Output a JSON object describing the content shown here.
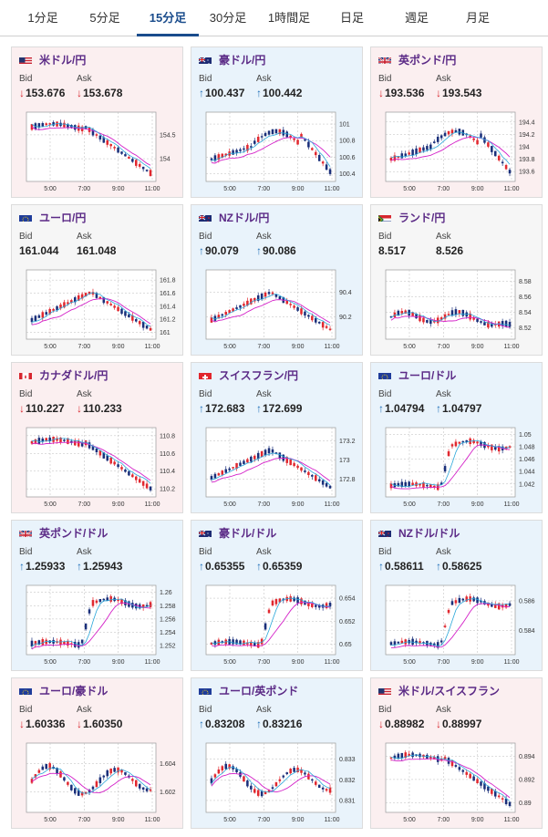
{
  "tabs": [
    "1分足",
    "5分足",
    "15分足",
    "30分足",
    "1時間足",
    "日足",
    "週足",
    "月足"
  ],
  "active_tab": 2,
  "labels": {
    "bid": "Bid",
    "ask": "Ask"
  },
  "colors": {
    "down_arrow": "#d9262e",
    "up_arrow": "#1f6fb8",
    "pair_name": "#5b2a86",
    "ma_line": "#d421c8",
    "trend_line": "#2aa6d9",
    "bull_candle": "#e1282f",
    "bear_candle": "#1a2f7a",
    "active_tab": "#1a4c8c"
  },
  "cards": [
    {
      "pair": "米ドル/円",
      "flag": "us-flag-icon",
      "dir": "down",
      "bid": "153.676",
      "ask": "153.678",
      "chart_data": {
        "type": "candlestick",
        "x_ticks": [
          "5:00",
          "7:00",
          "9:00",
          "11:00"
        ],
        "y_ticks": [
          "154.5",
          "154"
        ],
        "ylim": [
          153.6,
          154.9
        ],
        "shape": "downtrend"
      }
    },
    {
      "pair": "豪ドル/円",
      "flag": "au-flag-icon",
      "dir": "up",
      "bid": "100.437",
      "ask": "100.442",
      "chart_data": {
        "type": "candlestick",
        "x_ticks": [
          "5:00",
          "7:00",
          "9:00",
          "11:00"
        ],
        "y_ticks": [
          "101",
          "100.8",
          "100.6",
          "100.4"
        ],
        "ylim": [
          100.35,
          101.1
        ],
        "shape": "spike_then_down"
      }
    },
    {
      "pair": "英ポンド/円",
      "flag": "gb-flag-icon",
      "dir": "down",
      "bid": "193.536",
      "ask": "193.543",
      "chart_data": {
        "type": "candlestick",
        "x_ticks": [
          "5:00",
          "7:00",
          "9:00",
          "11:00"
        ],
        "y_ticks": [
          "194.4",
          "194.2",
          "194",
          "193.8",
          "193.6"
        ],
        "ylim": [
          193.5,
          194.5
        ],
        "shape": "spike_then_down"
      }
    },
    {
      "pair": "ユーロ/円",
      "flag": "eu-flag-icon",
      "dir": "flat",
      "bid": "161.044",
      "ask": "161.048",
      "chart_data": {
        "type": "candlestick",
        "x_ticks": [
          "5:00",
          "7:00",
          "9:00",
          "11:00"
        ],
        "y_ticks": [
          "161.8",
          "161.6",
          "161.4",
          "161.2",
          "161"
        ],
        "ylim": [
          160.95,
          161.9
        ],
        "shape": "rise_then_down"
      }
    },
    {
      "pair": "NZドル/円",
      "flag": "nz-flag-icon",
      "dir": "up",
      "bid": "90.079",
      "ask": "90.086",
      "chart_data": {
        "type": "candlestick",
        "x_ticks": [
          "5:00",
          "7:00",
          "9:00",
          "11:00"
        ],
        "y_ticks": [
          "90.4",
          "90.2"
        ],
        "ylim": [
          90.05,
          90.55
        ],
        "shape": "rise_then_down"
      }
    },
    {
      "pair": "ランド/円",
      "flag": "za-flag-icon",
      "dir": "flat",
      "bid": "8.517",
      "ask": "8.526",
      "chart_data": {
        "type": "candlestick",
        "x_ticks": [
          "5:00",
          "7:00",
          "9:00",
          "11:00"
        ],
        "y_ticks": [
          "8.58",
          "8.56",
          "8.54",
          "8.52"
        ],
        "ylim": [
          8.51,
          8.59
        ],
        "shape": "flat_spike"
      }
    },
    {
      "pair": "カナダドル/円",
      "flag": "ca-flag-icon",
      "dir": "down",
      "bid": "110.227",
      "ask": "110.233",
      "chart_data": {
        "type": "candlestick",
        "x_ticks": [
          "5:00",
          "7:00",
          "9:00",
          "11:00"
        ],
        "y_ticks": [
          "110.8",
          "110.6",
          "110.4",
          "110.2"
        ],
        "ylim": [
          110.15,
          110.85
        ],
        "shape": "downtrend"
      }
    },
    {
      "pair": "スイスフラン/円",
      "flag": "ch-flag-icon",
      "dir": "up",
      "bid": "172.683",
      "ask": "172.699",
      "chart_data": {
        "type": "candlestick",
        "x_ticks": [
          "5:00",
          "7:00",
          "9:00",
          "11:00"
        ],
        "y_ticks": [
          "173.2",
          "173",
          "172.8"
        ],
        "ylim": [
          172.65,
          173.3
        ],
        "shape": "rise_then_down"
      }
    },
    {
      "pair": "ユーロ/ドル",
      "flag": "eu-us-flag-icon",
      "dir": "up",
      "bid": "1.04794",
      "ask": "1.04797",
      "chart_data": {
        "type": "candlestick",
        "x_ticks": [
          "5:00",
          "7:00",
          "9:00",
          "11:00"
        ],
        "y_ticks": [
          "1.05",
          "1.048",
          "1.046",
          "1.044",
          "1.042"
        ],
        "ylim": [
          1.0405,
          1.0505
        ],
        "shape": "uptrend"
      }
    },
    {
      "pair": "英ポンド/ドル",
      "flag": "gb-us-flag-icon",
      "dir": "up",
      "bid": "1.25933",
      "ask": "1.25943",
      "chart_data": {
        "type": "candlestick",
        "x_ticks": [
          "5:00",
          "7:00",
          "9:00",
          "11:00"
        ],
        "y_ticks": [
          "1.26",
          "1.258",
          "1.256",
          "1.254",
          "1.252"
        ],
        "ylim": [
          1.2512,
          1.2605
        ],
        "shape": "uptrend"
      }
    },
    {
      "pair": "豪ドル/ドル",
      "flag": "au-us-flag-icon",
      "dir": "up",
      "bid": "0.65355",
      "ask": "0.65359",
      "chart_data": {
        "type": "candlestick",
        "x_ticks": [
          "5:00",
          "7:00",
          "9:00",
          "11:00"
        ],
        "y_ticks": [
          "0.654",
          "0.652",
          "0.65"
        ],
        "ylim": [
          0.6494,
          0.6548
        ],
        "shape": "uptrend"
      }
    },
    {
      "pair": "NZドル/ドル",
      "flag": "nz-us-flag-icon",
      "dir": "up",
      "bid": "0.58611",
      "ask": "0.58625",
      "chart_data": {
        "type": "candlestick",
        "x_ticks": [
          "5:00",
          "7:00",
          "9:00",
          "11:00"
        ],
        "y_ticks": [
          "0.586",
          "0.584"
        ],
        "ylim": [
          0.5826,
          0.5868
        ],
        "shape": "uptrend"
      }
    },
    {
      "pair": "ユーロ/豪ドル",
      "flag": "eu-au-flag-icon",
      "dir": "down",
      "bid": "1.60336",
      "ask": "1.60350",
      "chart_data": {
        "type": "candlestick",
        "x_ticks": [
          "5:00",
          "7:00",
          "9:00",
          "11:00"
        ],
        "y_ticks": [
          "1.604",
          "1.602"
        ],
        "ylim": [
          1.6008,
          1.6052
        ],
        "shape": "volatile"
      }
    },
    {
      "pair": "ユーロ/英ポンド",
      "flag": "eu-gb-flag-icon",
      "dir": "up",
      "bid": "0.83208",
      "ask": "0.83216",
      "chart_data": {
        "type": "candlestick",
        "x_ticks": [
          "5:00",
          "7:00",
          "9:00",
          "11:00"
        ],
        "y_ticks": [
          "0.833",
          "0.832",
          "0.831"
        ],
        "ylim": [
          0.8306,
          0.8336
        ],
        "shape": "volatile"
      }
    },
    {
      "pair": "米ドル/スイスフラン",
      "flag": "us-ch-flag-icon",
      "dir": "down",
      "bid": "0.88982",
      "ask": "0.88997",
      "chart_data": {
        "type": "candlestick",
        "x_ticks": [
          "5:00",
          "7:00",
          "9:00",
          "11:00"
        ],
        "y_ticks": [
          "0.894",
          "0.892",
          "0.89"
        ],
        "ylim": [
          0.8895,
          0.8948
        ],
        "shape": "downtrend"
      }
    }
  ]
}
